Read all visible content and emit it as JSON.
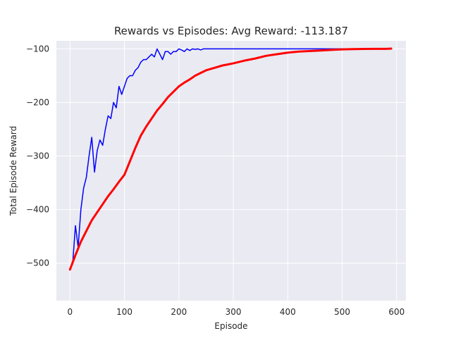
{
  "chart_data": {
    "type": "line",
    "title": "Rewards vs Episodes: Avg Reward: -113.187",
    "xlabel": "Episode",
    "ylabel": "Total Episode Reward",
    "xlim": [
      -25,
      617
    ],
    "ylim": [
      -570,
      -85
    ],
    "xticks": [
      0,
      100,
      200,
      300,
      400,
      500,
      600
    ],
    "yticks": [
      -500,
      -400,
      -300,
      -200,
      -100
    ],
    "grid": true,
    "background": "#eaeaf2",
    "series": [
      {
        "color": "#0000ff",
        "values_every_5_episodes": [
          -510,
          -500,
          -430,
          -470,
          -400,
          -360,
          -340,
          -300,
          -265,
          -330,
          -290,
          -270,
          -280,
          -250,
          -225,
          -230,
          -200,
          -210,
          -170,
          -185,
          -170,
          -155,
          -150,
          -150,
          -140,
          -135,
          -125,
          -120,
          -120,
          -115,
          -110,
          -115,
          -100,
          -110,
          -120,
          -105,
          -105,
          -110,
          -105,
          -105,
          -100,
          -102,
          -105,
          -100,
          -103,
          -100,
          -101,
          -100,
          -102,
          -100,
          -100,
          -100,
          -100,
          -100,
          -100,
          -100,
          -100,
          -100,
          -100,
          -100,
          -100,
          -100,
          -100,
          -100,
          -100,
          -100,
          -100,
          -100,
          -100,
          -100,
          -100,
          -100,
          -100,
          -100,
          -100,
          -100,
          -100,
          -100,
          -100,
          -100,
          -100,
          -100,
          -100,
          -100,
          -100,
          -100,
          -100,
          -100,
          -100,
          -100,
          -100,
          -100,
          -100,
          -100,
          -100,
          -100,
          -100,
          -100,
          -100,
          -100,
          -100,
          -100,
          -100,
          -100,
          -100,
          -100,
          -100,
          -100,
          -100,
          -100,
          -100,
          -100,
          -100,
          -100,
          -100,
          -100,
          -100,
          -100,
          -100
        ],
        "line_width": 1.5
      },
      {
        "color": "#ff0000",
        "x": [
          0,
          10,
          20,
          30,
          40,
          50,
          60,
          70,
          80,
          90,
          100,
          110,
          120,
          130,
          140,
          150,
          160,
          170,
          180,
          190,
          200,
          210,
          220,
          230,
          240,
          250,
          260,
          270,
          280,
          290,
          300,
          320,
          340,
          360,
          380,
          400,
          420,
          440,
          460,
          480,
          500,
          520,
          540,
          560,
          580,
          590
        ],
        "y": [
          -512,
          -485,
          -460,
          -440,
          -420,
          -405,
          -390,
          -375,
          -362,
          -348,
          -335,
          -310,
          -285,
          -262,
          -245,
          -230,
          -215,
          -203,
          -190,
          -180,
          -170,
          -163,
          -157,
          -150,
          -145,
          -140,
          -137,
          -134,
          -131,
          -129,
          -127,
          -122,
          -118,
          -113,
          -110,
          -107,
          -105,
          -104,
          -103,
          -102,
          -101,
          -100.5,
          -100.2,
          -100,
          -100,
          -99.5
        ],
        "line_width": 3
      }
    ]
  }
}
